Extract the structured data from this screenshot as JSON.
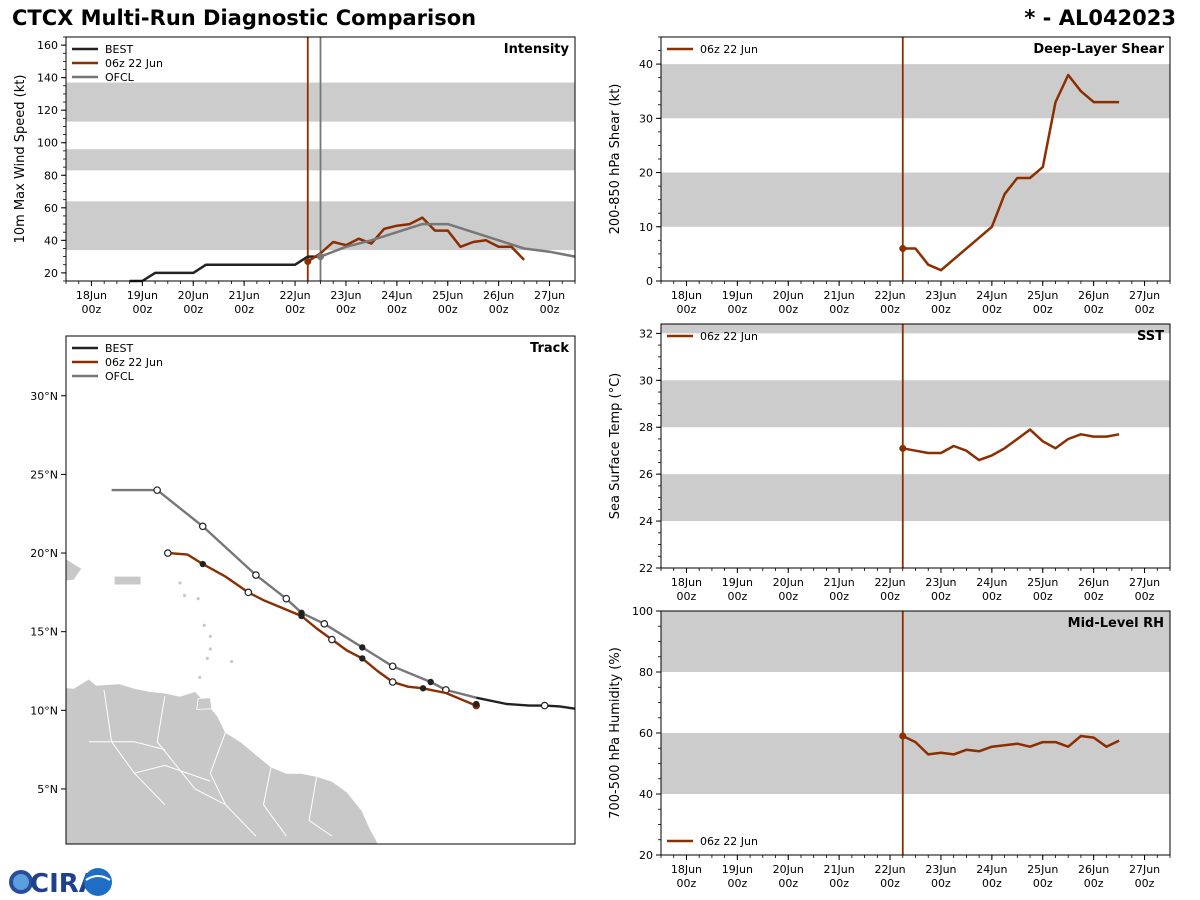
{
  "header": {
    "title": "CTCX Multi-Run Diagnostic Comparison",
    "storm": "* - AL042023"
  },
  "logo": {
    "text": "CIRA"
  },
  "chart_data": [
    {
      "id": "intensity",
      "type": "line",
      "title": "Intensity",
      "ylabel": "10m Max Wind Speed (kt)",
      "xlim": [
        -0.5,
        9.5
      ],
      "ylim": [
        15,
        165
      ],
      "yticks": [
        20,
        40,
        60,
        80,
        100,
        120,
        140,
        160
      ],
      "xtick_pos": [
        0,
        1,
        2,
        3,
        4,
        5,
        6,
        7,
        8,
        9
      ],
      "xtick_labels": [
        [
          "18Jun",
          "00z"
        ],
        [
          "19Jun",
          "00z"
        ],
        [
          "20Jun",
          "00z"
        ],
        [
          "21Jun",
          "00z"
        ],
        [
          "22Jun",
          "00z"
        ],
        [
          "23Jun",
          "00z"
        ],
        [
          "24Jun",
          "00z"
        ],
        [
          "25Jun",
          "00z"
        ],
        [
          "26Jun",
          "00z"
        ],
        [
          "27Jun",
          "00z"
        ]
      ],
      "bands": [
        [
          34,
          64
        ],
        [
          83,
          96
        ],
        [
          113,
          137
        ]
      ],
      "vlines": [
        {
          "x": 4.25,
          "color": "#8b2e00"
        },
        {
          "x": 4.5,
          "color": "#777777"
        }
      ],
      "legend": [
        {
          "label": "BEST",
          "color": "#222222"
        },
        {
          "label": "06z 22 Jun",
          "color": "#8b2e00"
        },
        {
          "label": "OFCL",
          "color": "#777777"
        }
      ],
      "series": [
        {
          "name": "BEST",
          "color": "#222222",
          "x": [
            0.75,
            1.0,
            1.25,
            1.5,
            1.75,
            2.0,
            2.25,
            2.5,
            2.75,
            3.0,
            3.25,
            3.5,
            3.75,
            4.0,
            4.25,
            4.5
          ],
          "y": [
            15,
            15,
            20,
            20,
            20,
            20,
            25,
            25,
            25,
            25,
            25,
            25,
            25,
            25,
            30,
            30
          ]
        },
        {
          "name": "06z 22 Jun",
          "color": "#8b2e00",
          "x": [
            4.25,
            4.5,
            4.75,
            5.0,
            5.25,
            5.5,
            5.75,
            6.0,
            6.25,
            6.5,
            6.75,
            7.0,
            7.25,
            7.5,
            7.75,
            8.0,
            8.25,
            8.5
          ],
          "y": [
            27,
            32,
            39,
            37,
            41,
            38,
            47,
            49,
            50,
            54,
            46,
            46,
            36,
            39,
            40,
            36,
            36,
            28
          ],
          "start_marker": true
        },
        {
          "name": "OFCL",
          "color": "#777777",
          "x": [
            4.5,
            5.0,
            5.5,
            6.0,
            6.5,
            7.0,
            7.5,
            8.0,
            8.5,
            9.0,
            9.5
          ],
          "y": [
            30,
            36,
            40,
            45,
            50,
            50,
            45,
            40,
            35,
            33,
            30
          ],
          "start_marker": true
        }
      ]
    },
    {
      "id": "shear",
      "type": "line",
      "title": "Deep-Layer Shear",
      "ylabel": "200-850 hPa Shear (kt)",
      "xlim": [
        -0.5,
        9.5
      ],
      "ylim": [
        0,
        45
      ],
      "yticks": [
        0,
        10,
        20,
        30,
        40
      ],
      "xtick_pos": [
        0,
        1,
        2,
        3,
        4,
        5,
        6,
        7,
        8,
        9
      ],
      "xtick_labels": [
        [
          "18Jun",
          "00z"
        ],
        [
          "19Jun",
          "00z"
        ],
        [
          "20Jun",
          "00z"
        ],
        [
          "21Jun",
          "00z"
        ],
        [
          "22Jun",
          "00z"
        ],
        [
          "23Jun",
          "00z"
        ],
        [
          "24Jun",
          "00z"
        ],
        [
          "25Jun",
          "00z"
        ],
        [
          "26Jun",
          "00z"
        ],
        [
          "27Jun",
          "00z"
        ]
      ],
      "bands": [
        [
          10,
          20
        ],
        [
          30,
          40
        ]
      ],
      "vlines": [
        {
          "x": 4.25,
          "color": "#8b2e00"
        }
      ],
      "legend": [
        {
          "label": "06z 22 Jun",
          "color": "#8b2e00"
        }
      ],
      "series": [
        {
          "name": "06z 22 Jun",
          "color": "#8b2e00",
          "x": [
            4.25,
            4.5,
            4.75,
            5.0,
            6.0,
            6.25,
            6.5,
            6.75,
            7.0,
            7.25,
            7.5,
            7.75,
            8.0,
            8.25,
            8.5
          ],
          "y": [
            6,
            6,
            3,
            2,
            10,
            16,
            19,
            19,
            21,
            33,
            38,
            35,
            33,
            33,
            33
          ],
          "start_marker": true
        }
      ]
    },
    {
      "id": "sst",
      "type": "line",
      "title": "SST",
      "ylabel": "Sea Surface Temp (°C)",
      "xlim": [
        -0.5,
        9.5
      ],
      "ylim": [
        22,
        32.4
      ],
      "yticks": [
        22,
        24,
        26,
        28,
        30,
        32
      ],
      "xtick_pos": [
        0,
        1,
        2,
        3,
        4,
        5,
        6,
        7,
        8,
        9
      ],
      "xtick_labels": [
        [
          "18Jun",
          "00z"
        ],
        [
          "19Jun",
          "00z"
        ],
        [
          "20Jun",
          "00z"
        ],
        [
          "21Jun",
          "00z"
        ],
        [
          "22Jun",
          "00z"
        ],
        [
          "23Jun",
          "00z"
        ],
        [
          "24Jun",
          "00z"
        ],
        [
          "25Jun",
          "00z"
        ],
        [
          "26Jun",
          "00z"
        ],
        [
          "27Jun",
          "00z"
        ]
      ],
      "bands": [
        [
          24,
          26
        ],
        [
          28,
          30
        ],
        [
          32,
          34
        ]
      ],
      "vlines": [
        {
          "x": 4.25,
          "color": "#8b2e00"
        }
      ],
      "legend": [
        {
          "label": "06z 22 Jun",
          "color": "#8b2e00"
        }
      ],
      "series": [
        {
          "name": "06z 22 Jun",
          "color": "#8b2e00",
          "x": [
            4.25,
            4.5,
            4.75,
            5.0,
            5.25,
            5.5,
            5.75,
            6.0,
            6.25,
            6.5,
            6.75,
            7.0,
            7.25,
            7.5,
            7.75,
            8.0,
            8.25,
            8.5
          ],
          "y": [
            27.1,
            27.0,
            26.9,
            26.9,
            27.2,
            27.0,
            26.6,
            26.8,
            27.1,
            27.5,
            27.9,
            27.4,
            27.1,
            27.5,
            27.7,
            27.6,
            27.6,
            27.7
          ],
          "start_marker": true
        }
      ]
    },
    {
      "id": "rh",
      "type": "line",
      "title": "Mid-Level RH",
      "ylabel": "700-500 hPa Humidity (%)",
      "xlim": [
        -0.5,
        9.5
      ],
      "ylim": [
        20,
        100
      ],
      "yticks": [
        20,
        40,
        60,
        80,
        100
      ],
      "xtick_pos": [
        0,
        1,
        2,
        3,
        4,
        5,
        6,
        7,
        8,
        9
      ],
      "xtick_labels": [
        [
          "18Jun",
          "00z"
        ],
        [
          "19Jun",
          "00z"
        ],
        [
          "20Jun",
          "00z"
        ],
        [
          "21Jun",
          "00z"
        ],
        [
          "22Jun",
          "00z"
        ],
        [
          "23Jun",
          "00z"
        ],
        [
          "24Jun",
          "00z"
        ],
        [
          "25Jun",
          "00z"
        ],
        [
          "26Jun",
          "00z"
        ],
        [
          "27Jun",
          "00z"
        ]
      ],
      "bands": [
        [
          40,
          60
        ],
        [
          80,
          100
        ]
      ],
      "vlines": [
        {
          "x": 4.25,
          "color": "#8b2e00"
        }
      ],
      "legend": [
        {
          "label": "06z 22 Jun",
          "color": "#8b2e00"
        }
      ],
      "legend_loc": "lower left",
      "series": [
        {
          "name": "06z 22 Jun",
          "color": "#8b2e00",
          "x": [
            4.25,
            4.5,
            4.75,
            5.0,
            5.25,
            5.5,
            5.75,
            6.0,
            6.25,
            6.5,
            6.75,
            7.0,
            7.25,
            7.5,
            7.75,
            8.0,
            8.25,
            8.5
          ],
          "y": [
            59,
            57,
            53,
            53.5,
            53,
            54.5,
            54,
            55.5,
            56,
            56.5,
            55.5,
            57,
            57,
            55.5,
            59,
            58.5,
            55.5,
            57.5
          ],
          "start_marker": true
        }
      ]
    },
    {
      "id": "track",
      "type": "scatter",
      "title": "Track",
      "xlim": [
        -70.5,
        -37
      ],
      "ylim": [
        1.5,
        33.8
      ],
      "yticks": [
        5,
        10,
        15,
        20,
        25,
        30
      ],
      "ytick_labels": [
        "5°N",
        "10°N",
        "15°N",
        "20°N",
        "25°N",
        "30°N"
      ],
      "legend": [
        {
          "label": "BEST",
          "color": "#222222"
        },
        {
          "label": "06z 22 Jun",
          "color": "#8b2e00"
        },
        {
          "label": "OFCL",
          "color": "#777777"
        }
      ],
      "land_color": "#c8c8c8",
      "series": [
        {
          "name": "BEST",
          "color": "#222222",
          "lon": [
            -37.0,
            -38.0,
            -39.0,
            -40.0,
            -41.5,
            -43.5
          ],
          "lat": [
            10.1,
            10.25,
            10.3,
            10.3,
            10.4,
            10.8
          ],
          "filled": [],
          "open": [
            2
          ]
        },
        {
          "name": "06z 22 Jun",
          "color": "#8b2e00",
          "lon": [
            -43.5,
            -44.5,
            -45.5,
            -46.5,
            -47.0,
            -48.0,
            -49.0,
            -50.0,
            -51.0,
            -52.0,
            -53.0,
            -54.0,
            -55.0,
            -56.5,
            -57.5,
            -58.5,
            -60.0,
            -61.5,
            -62.5,
            -63.8
          ],
          "lat": [
            10.3,
            10.7,
            11.1,
            11.3,
            11.4,
            11.5,
            11.8,
            12.5,
            13.3,
            13.8,
            14.5,
            15.2,
            16.0,
            16.6,
            17.0,
            17.5,
            18.5,
            19.3,
            19.9,
            20.0
          ],
          "filled": [
            4,
            8,
            12,
            17
          ],
          "open": [
            6,
            10,
            15,
            19
          ],
          "end_marker": 0
        },
        {
          "name": "OFCL",
          "color": "#777777",
          "lon": [
            -43.5,
            -45.5,
            -46.5,
            -49.0,
            -51.0,
            -53.5,
            -55.0,
            -56.0,
            -58.0,
            -61.5,
            -64.5,
            -67.5
          ],
          "lat": [
            10.8,
            11.3,
            11.8,
            12.8,
            14.0,
            15.5,
            16.2,
            17.1,
            18.6,
            21.7,
            24.0,
            24.0
          ],
          "filled": [
            2,
            4,
            6
          ],
          "open": [
            1,
            3,
            5,
            7,
            8,
            9,
            10
          ]
        }
      ],
      "best_filled": {
        "lon": [
          -43.5
        ],
        "lat": [
          10.4
        ]
      }
    }
  ]
}
